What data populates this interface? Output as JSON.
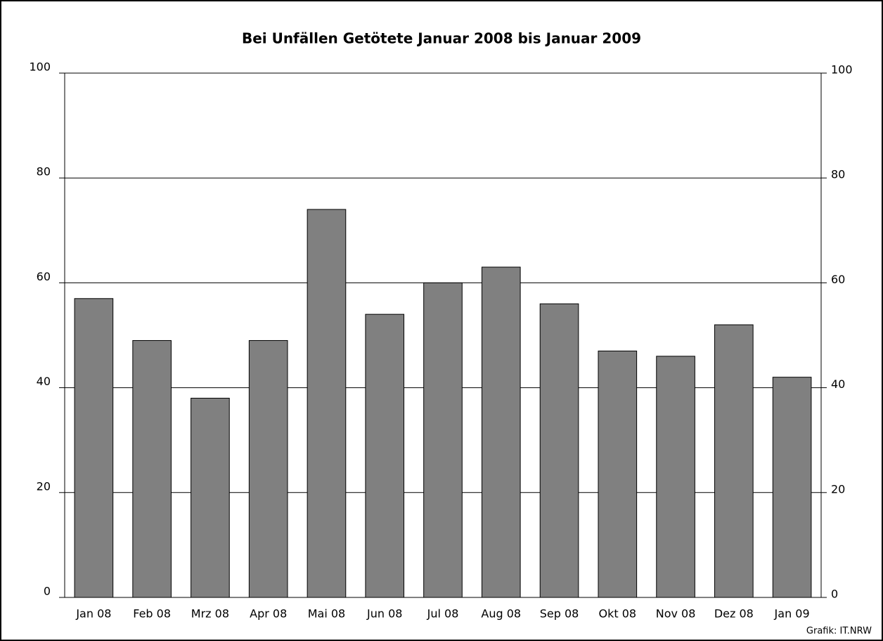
{
  "chart_data": {
    "type": "bar",
    "title": "Bei Unfällen Getötete Januar 2008 bis Januar 2009",
    "categories": [
      "Jan 08",
      "Feb 08",
      "Mrz 08",
      "Apr 08",
      "Mai 08",
      "Jun 08",
      "Jul 08",
      "Aug 08",
      "Sep 08",
      "Okt 08",
      "Nov 08",
      "Dez 08",
      "Jan 09"
    ],
    "values": [
      57,
      49,
      38,
      49,
      74,
      54,
      60,
      63,
      56,
      47,
      46,
      52,
      42
    ],
    "color": "#808080",
    "ylim": [
      0,
      100
    ],
    "yticks": [
      0,
      20,
      40,
      60,
      80,
      100
    ],
    "y2lim": [
      0,
      100
    ],
    "y2ticks": [
      0,
      20,
      40,
      60,
      80,
      100
    ],
    "grid": true,
    "source": "Grafik: IT.NRW"
  }
}
